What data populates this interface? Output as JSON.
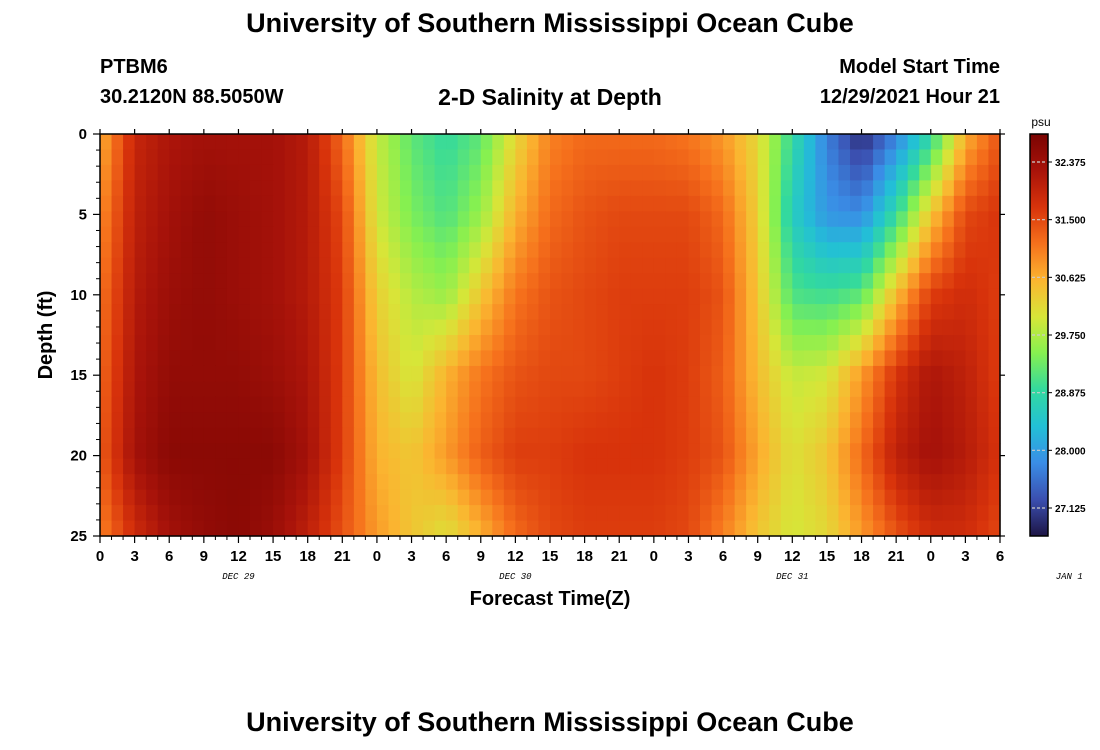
{
  "header": {
    "title": "University of Southern Mississippi Ocean Cube",
    "station": "PTBM6",
    "coords": "30.2120N  88.5050W",
    "plot_title": "2-D Salinity at Depth",
    "model_start_label": "Model Start Time",
    "model_start_value": "12/29/2021 Hour 21"
  },
  "footer": {
    "title": "University of Southern Mississippi Ocean Cube"
  },
  "chart_data": {
    "type": "heatmap",
    "title": "2-D Salinity at Depth",
    "xlabel": "Forecast Time(Z)",
    "ylabel": "Depth (ft)",
    "x_ticks": [
      "0",
      "3",
      "6",
      "9",
      "12",
      "15",
      "18",
      "21",
      "0",
      "3",
      "6",
      "9",
      "12",
      "15",
      "18",
      "21",
      "0",
      "3",
      "6",
      "9",
      "12",
      "15",
      "18",
      "21",
      "0",
      "3",
      "6"
    ],
    "x_day_labels": [
      "DEC 29",
      "DEC 30",
      "DEC 31",
      "JAN 1"
    ],
    "y_ticks": [
      "0",
      "5",
      "10",
      "15",
      "20",
      "25"
    ],
    "ylim": [
      0,
      25
    ],
    "x_hours": [
      0,
      3,
      6,
      9,
      12,
      15,
      18,
      21,
      24,
      27,
      30,
      33,
      36,
      39,
      42,
      45,
      48,
      51,
      54,
      57,
      60,
      63,
      66,
      69,
      72,
      75,
      78
    ],
    "depths": [
      0,
      5,
      10,
      15,
      20,
      25
    ],
    "values": [
      [
        30.6,
        31.9,
        32.2,
        32.3,
        32.3,
        32.3,
        32.1,
        31.2,
        29.9,
        29.2,
        28.9,
        29.2,
        30.2,
        31.0,
        31.2,
        31.2,
        31.2,
        31.1,
        30.8,
        30.2,
        28.9,
        27.7,
        26.9,
        27.7,
        28.8,
        30.6,
        31.4
      ],
      [
        30.9,
        32.0,
        32.3,
        32.5,
        32.4,
        32.3,
        32.1,
        31.5,
        30.0,
        29.4,
        29.1,
        29.6,
        30.6,
        31.2,
        31.4,
        31.5,
        31.5,
        31.5,
        31.2,
        30.3,
        28.6,
        27.9,
        27.8,
        28.9,
        30.4,
        31.5,
        31.7
      ],
      [
        31.1,
        32.1,
        32.4,
        32.5,
        32.4,
        32.3,
        32.1,
        31.6,
        30.3,
        29.8,
        29.6,
        30.4,
        31.1,
        31.4,
        31.5,
        31.6,
        31.6,
        31.6,
        31.4,
        30.4,
        29.1,
        29.0,
        29.2,
        30.5,
        31.6,
        31.8,
        31.6
      ],
      [
        31.2,
        32.2,
        32.5,
        32.5,
        32.5,
        32.4,
        32.2,
        31.6,
        30.5,
        30.0,
        30.6,
        31.1,
        31.4,
        31.5,
        31.5,
        31.6,
        31.7,
        31.6,
        31.3,
        30.5,
        29.9,
        30.0,
        30.8,
        31.7,
        32.2,
        32.0,
        31.6
      ],
      [
        31.3,
        32.3,
        32.6,
        32.6,
        32.6,
        32.6,
        32.3,
        31.6,
        30.6,
        30.4,
        30.8,
        31.3,
        31.6,
        31.6,
        31.7,
        31.7,
        31.7,
        31.6,
        31.4,
        30.7,
        30.1,
        30.4,
        31.2,
        32.0,
        32.3,
        32.1,
        31.7
      ],
      [
        31.0,
        31.8,
        32.3,
        32.5,
        32.6,
        32.4,
        32.0,
        31.4,
        30.8,
        30.4,
        30.1,
        30.6,
        31.2,
        31.5,
        31.6,
        31.6,
        31.6,
        31.5,
        31.0,
        30.4,
        30.0,
        30.2,
        30.8,
        31.4,
        31.8,
        31.8,
        31.5
      ]
    ],
    "colorbar": {
      "label": "psu",
      "tick_labels": [
        "32.375",
        "31.500",
        "30.625",
        "29.750",
        "28.875",
        "28.000",
        "27.125"
      ],
      "tick_values": [
        32.375,
        31.5,
        30.625,
        29.75,
        28.875,
        28.0,
        27.125
      ],
      "min": 26.7,
      "max": 32.8,
      "colors": [
        "#1d1545",
        "#3b4fb0",
        "#3a8de6",
        "#22c0d6",
        "#33d99e",
        "#86f050",
        "#d7e638",
        "#fbb530",
        "#f6711c",
        "#d8330b",
        "#a8130a",
        "#7a0402"
      ]
    }
  }
}
